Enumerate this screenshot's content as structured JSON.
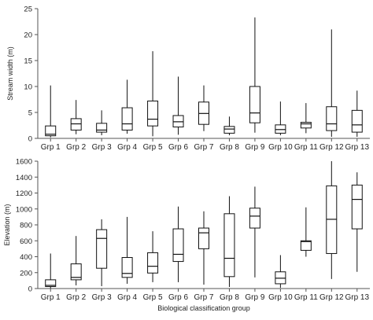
{
  "chart_data": [
    {
      "type": "box",
      "ylabel": "Stream width (m)",
      "xlabel": "",
      "ylim": [
        0,
        25
      ],
      "yticks": [
        0,
        5,
        10,
        15,
        20,
        25
      ],
      "categories": [
        "Grp 1",
        "Grp 2",
        "Grp 3",
        "Grp 4",
        "Grp 5",
        "Grp 6",
        "Grp 7",
        "Grp 8",
        "Grp 9",
        "Grp 10",
        "Grp 11",
        "Grp 12",
        "Grp 13"
      ],
      "boxes": [
        {
          "min": 0.2,
          "q1": 0.5,
          "median": 0.8,
          "q3": 2.4,
          "max": 10.2
        },
        {
          "min": 0.8,
          "q1": 1.6,
          "median": 2.8,
          "q3": 3.8,
          "max": 7.4
        },
        {
          "min": 0.6,
          "q1": 1.2,
          "median": 1.6,
          "q3": 2.9,
          "max": 5.4
        },
        {
          "min": 0.9,
          "q1": 1.6,
          "median": 2.8,
          "q3": 5.9,
          "max": 11.3
        },
        {
          "min": 0.4,
          "q1": 2.4,
          "median": 3.7,
          "q3": 7.2,
          "max": 16.8
        },
        {
          "min": 0.7,
          "q1": 2.2,
          "median": 3.2,
          "q3": 4.4,
          "max": 11.9
        },
        {
          "min": 1.4,
          "q1": 2.7,
          "median": 4.8,
          "q3": 7.0,
          "max": 10.2
        },
        {
          "min": 0.6,
          "q1": 1.0,
          "median": 1.8,
          "q3": 2.3,
          "max": 4.2
        },
        {
          "min": 1.1,
          "q1": 3.0,
          "median": 4.9,
          "q3": 10.0,
          "max": 23.3
        },
        {
          "min": 0.6,
          "q1": 1.0,
          "median": 1.7,
          "q3": 2.6,
          "max": 7.1
        },
        {
          "min": 1.0,
          "q1": 2.0,
          "median": 2.8,
          "q3": 3.1,
          "max": 6.8
        },
        {
          "min": 0.3,
          "q1": 1.5,
          "median": 2.8,
          "q3": 6.1,
          "max": 21.0
        },
        {
          "min": 0.3,
          "q1": 1.2,
          "median": 2.6,
          "q3": 5.4,
          "max": 9.2
        }
      ]
    },
    {
      "type": "box",
      "ylabel": "Elevation (m)",
      "xlabel": "Biological classification group",
      "ylim": [
        0,
        1600
      ],
      "yticks": [
        0,
        200,
        400,
        600,
        800,
        1000,
        1200,
        1400,
        1600
      ],
      "categories": [
        "Grp 1",
        "Grp 2",
        "Grp 3",
        "Grp 4",
        "Grp 5",
        "Grp 6",
        "Grp 7",
        "Grp 8",
        "Grp 9",
        "Grp 10",
        "Grp 11",
        "Grp 12",
        "Grp 13"
      ],
      "boxes": [
        {
          "min": 5,
          "q1": 25,
          "median": 40,
          "q3": 110,
          "max": 440
        },
        {
          "min": 40,
          "q1": 110,
          "median": 140,
          "q3": 310,
          "max": 660
        },
        {
          "min": 30,
          "q1": 255,
          "median": 630,
          "q3": 740,
          "max": 870
        },
        {
          "min": 60,
          "q1": 140,
          "median": 190,
          "q3": 390,
          "max": 900
        },
        {
          "min": 80,
          "q1": 195,
          "median": 280,
          "q3": 450,
          "max": 720
        },
        {
          "min": 80,
          "q1": 340,
          "median": 430,
          "q3": 750,
          "max": 1030
        },
        {
          "min": 50,
          "q1": 500,
          "median": 700,
          "q3": 760,
          "max": 970
        },
        {
          "min": 20,
          "q1": 150,
          "median": 380,
          "q3": 940,
          "max": 1160
        },
        {
          "min": 140,
          "q1": 760,
          "median": 910,
          "q3": 1010,
          "max": 1280
        },
        {
          "min": 10,
          "q1": 60,
          "median": 130,
          "q3": 210,
          "max": 420
        },
        {
          "min": 400,
          "q1": 480,
          "median": 590,
          "q3": 600,
          "max": 1020
        },
        {
          "min": 120,
          "q1": 440,
          "median": 870,
          "q3": 1290,
          "max": 1600
        },
        {
          "min": 210,
          "q1": 750,
          "median": 1120,
          "q3": 1300,
          "max": 1460
        }
      ]
    }
  ]
}
